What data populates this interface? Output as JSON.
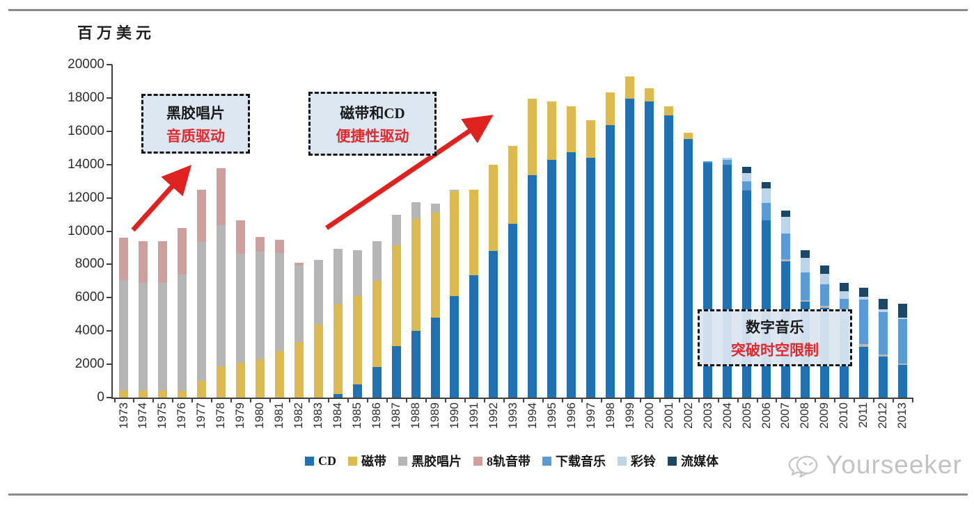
{
  "rules": {
    "top": "divider",
    "bottom": "divider"
  },
  "annotations": [
    {
      "line1": "黑胶唱片",
      "line2": "音质驱动"
    },
    {
      "line1": "磁带和CD",
      "line2": "便捷性驱动"
    },
    {
      "line1": "数字音乐",
      "line2": "突破时空限制"
    }
  ],
  "watermark": {
    "text": "Yourseeker",
    "icon": "wechat-icon"
  },
  "colors": {
    "accent_red": "#e0221f",
    "annotation_bg": "#dbe5f1",
    "annotation_text_red": "#e0282d",
    "axis": "#3f3f3f",
    "rule_gray": "#8a8a8a",
    "watermark_gray": "#c2c2c2"
  },
  "chart_data": {
    "type": "bar",
    "stacked": true,
    "title": "",
    "ylabel": "百万美元",
    "xlabel": "",
    "ylim": [
      0,
      20000
    ],
    "y_ticks": [
      "20000",
      "18000",
      "16000",
      "14000",
      "12000",
      "10000",
      "8000",
      "6000",
      "4000",
      "2000",
      "0"
    ],
    "grid": false,
    "legend_position": "bottom",
    "categories": [
      "1973",
      "1974",
      "1975",
      "1976",
      "1977",
      "1978",
      "1979",
      "1980",
      "1981",
      "1982",
      "1983",
      "1984",
      "1985",
      "1986",
      "1987",
      "1988",
      "1989",
      "1990",
      "1991",
      "1992",
      "1993",
      "1994",
      "1995",
      "1996",
      "1997",
      "1998",
      "1999",
      "2000",
      "2001",
      "2002",
      "2003",
      "2004",
      "2005",
      "2006",
      "2007",
      "2008",
      "2009",
      "2010",
      "2011",
      "2012",
      "2013"
    ],
    "series": [
      {
        "name": "CD",
        "color": "#2071b2",
        "values": [
          0,
          0,
          0,
          0,
          0,
          0,
          0,
          0,
          0,
          0,
          0,
          200,
          800,
          1850,
          3100,
          4000,
          4800,
          6100,
          7350,
          8800,
          10450,
          13350,
          14300,
          14750,
          14400,
          16350,
          17950,
          17800,
          16950,
          15550,
          14100,
          14000,
          12450,
          10650,
          8200,
          5750,
          5400,
          4700,
          3050,
          2450,
          1950
        ]
      },
      {
        "name": "磁带",
        "color": "#dcba50",
        "values": [
          400,
          400,
          400,
          400,
          1000,
          1900,
          2100,
          2300,
          2800,
          3350,
          4400,
          5400,
          5300,
          5150,
          6050,
          6750,
          6300,
          6300,
          5150,
          5200,
          4650,
          4600,
          3500,
          2750,
          2250,
          2000,
          1350,
          800,
          550,
          350,
          0,
          0,
          0,
          0,
          0,
          0,
          0,
          0,
          0,
          0,
          0
        ]
      },
      {
        "name": "黑胶唱片",
        "color": "#b6b6b6",
        "values": [
          6650,
          6500,
          6500,
          7000,
          8350,
          8450,
          6550,
          6450,
          5900,
          4600,
          3850,
          3350,
          2750,
          2400,
          1850,
          1000,
          550,
          100,
          0,
          0,
          0,
          0,
          0,
          0,
          0,
          0,
          0,
          0,
          0,
          0,
          0,
          0,
          0,
          0,
          100,
          100,
          100,
          100,
          150,
          150,
          100
        ]
      },
      {
        "name": "8轨音带",
        "color": "#cf9f9e",
        "values": [
          2550,
          2500,
          2500,
          2800,
          3150,
          3450,
          2000,
          900,
          800,
          150,
          0,
          0,
          0,
          0,
          0,
          0,
          0,
          0,
          0,
          0,
          0,
          0,
          0,
          0,
          0,
          0,
          0,
          0,
          0,
          0,
          0,
          0,
          0,
          0,
          0,
          0,
          0,
          0,
          0,
          0,
          0
        ]
      },
      {
        "name": "下载音乐",
        "color": "#5b9bd5",
        "values": [
          0,
          0,
          0,
          0,
          0,
          0,
          0,
          0,
          0,
          0,
          0,
          0,
          0,
          0,
          0,
          0,
          0,
          0,
          0,
          0,
          0,
          0,
          0,
          0,
          0,
          0,
          0,
          0,
          0,
          0,
          100,
          300,
          550,
          1050,
          1550,
          1650,
          1300,
          1150,
          2700,
          2550,
          2650
        ]
      },
      {
        "name": "彩铃",
        "color": "#bcd4ea",
        "values": [
          0,
          0,
          0,
          0,
          0,
          0,
          0,
          0,
          0,
          0,
          0,
          0,
          0,
          0,
          0,
          0,
          0,
          0,
          0,
          0,
          0,
          0,
          0,
          0,
          0,
          0,
          0,
          0,
          0,
          0,
          0,
          100,
          500,
          850,
          1000,
          900,
          650,
          450,
          150,
          150,
          100
        ]
      },
      {
        "name": "流媒体",
        "color": "#1c4767",
        "values": [
          0,
          0,
          0,
          0,
          0,
          0,
          0,
          0,
          0,
          0,
          0,
          0,
          0,
          0,
          0,
          0,
          0,
          0,
          0,
          0,
          0,
          0,
          0,
          0,
          0,
          0,
          0,
          0,
          0,
          0,
          0,
          0,
          350,
          400,
          400,
          450,
          500,
          500,
          550,
          650,
          850
        ]
      }
    ]
  }
}
